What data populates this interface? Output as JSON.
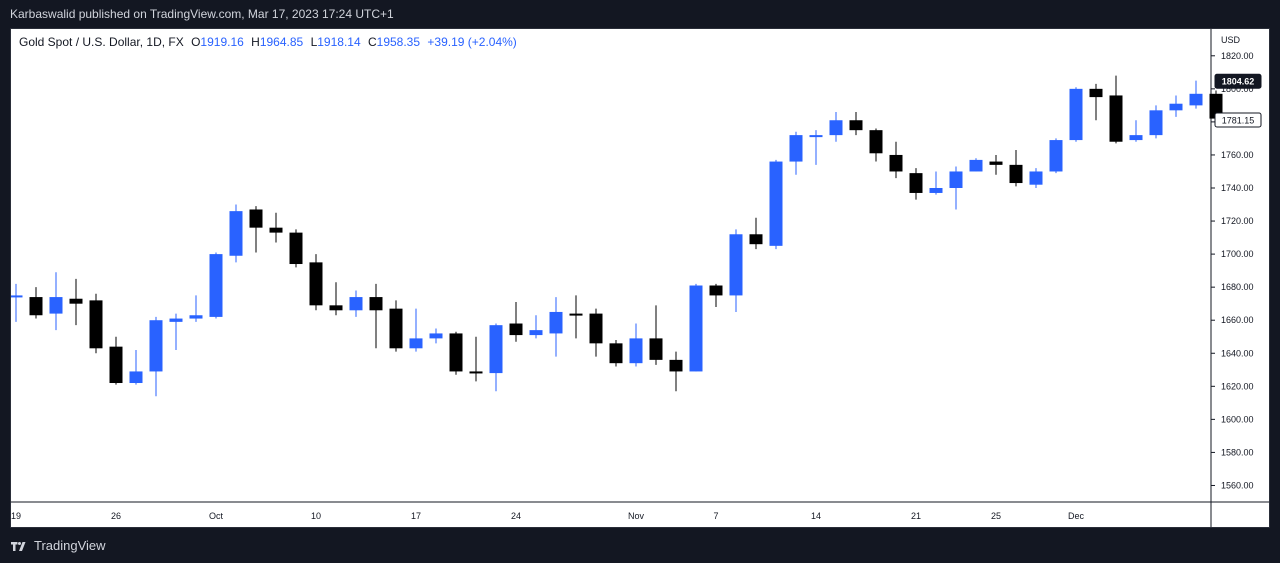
{
  "header": {
    "published": "Karbaswalid published on TradingView.com, Mar 17, 2023 17:24 UTC+1"
  },
  "legend": {
    "symbol": "Gold Spot / U.S. Dollar, 1D, FX",
    "o_label": "O",
    "o_value": "1919.16",
    "h_label": "H",
    "h_value": "1964.85",
    "l_label": "L",
    "l_value": "1918.14",
    "c_label": "C",
    "c_value": "1958.35",
    "change": "+39.19 (+2.04%)"
  },
  "footer": {
    "brand": "TradingView"
  },
  "colors": {
    "up": "#2962ff",
    "down": "#000000",
    "price_tag_bg": "#131722",
    "background": "#ffffff"
  },
  "chart_data": {
    "type": "candlestick",
    "currency_label": "USD",
    "y_ticks": [
      1560,
      1580,
      1600,
      1620,
      1640,
      1660,
      1680,
      1700,
      1720,
      1740,
      1760,
      1780,
      1800,
      1820
    ],
    "y_tick_labels": [
      "1560.00",
      "1580.00",
      "1600.00",
      "1620.00",
      "1640.00",
      "1660.00",
      "1680.00",
      "1700.00",
      "1720.00",
      "1740.00",
      "1760.00",
      "1780.00",
      "1800.00",
      "1820.00"
    ],
    "ylim": [
      1550,
      1835
    ],
    "x_labels": [
      {
        "label": "19",
        "index": 0
      },
      {
        "label": "26",
        "index": 5
      },
      {
        "label": "Oct",
        "index": 10
      },
      {
        "label": "10",
        "index": 15
      },
      {
        "label": "17",
        "index": 20
      },
      {
        "label": "24",
        "index": 25
      },
      {
        "label": "Nov",
        "index": 31
      },
      {
        "label": "7",
        "index": 35
      },
      {
        "label": "14",
        "index": 40
      },
      {
        "label": "21",
        "index": 45
      },
      {
        "label": "25",
        "index": 49
      },
      {
        "label": "Dec",
        "index": 53
      }
    ],
    "price_tags": [
      {
        "label": "1804.62",
        "value": 1804.62,
        "style": "dark"
      },
      {
        "label": "1781.15",
        "value": 1781.15,
        "style": "light"
      }
    ],
    "candles": [
      {
        "o": 1674,
        "h": 1682,
        "l": 1659,
        "c": 1675
      },
      {
        "o": 1674,
        "h": 1680,
        "l": 1661,
        "c": 1663
      },
      {
        "o": 1664,
        "h": 1689,
        "l": 1654,
        "c": 1674
      },
      {
        "o": 1673,
        "h": 1685,
        "l": 1657,
        "c": 1670
      },
      {
        "o": 1672,
        "h": 1676,
        "l": 1640,
        "c": 1643
      },
      {
        "o": 1644,
        "h": 1650,
        "l": 1621,
        "c": 1622
      },
      {
        "o": 1622,
        "h": 1642,
        "l": 1621,
        "c": 1629
      },
      {
        "o": 1629,
        "h": 1662,
        "l": 1614,
        "c": 1660
      },
      {
        "o": 1659,
        "h": 1664,
        "l": 1642,
        "c": 1661
      },
      {
        "o": 1661,
        "h": 1675,
        "l": 1659,
        "c": 1663
      },
      {
        "o": 1662,
        "h": 1701,
        "l": 1661,
        "c": 1700
      },
      {
        "o": 1699,
        "h": 1730,
        "l": 1695,
        "c": 1726
      },
      {
        "o": 1727,
        "h": 1729,
        "l": 1701,
        "c": 1716
      },
      {
        "o": 1716,
        "h": 1725,
        "l": 1707,
        "c": 1713
      },
      {
        "o": 1713,
        "h": 1715,
        "l": 1692,
        "c": 1694
      },
      {
        "o": 1695,
        "h": 1700,
        "l": 1666,
        "c": 1669
      },
      {
        "o": 1669,
        "h": 1683,
        "l": 1663,
        "c": 1666
      },
      {
        "o": 1666,
        "h": 1678,
        "l": 1662,
        "c": 1674
      },
      {
        "o": 1674,
        "h": 1682,
        "l": 1643,
        "c": 1666
      },
      {
        "o": 1667,
        "h": 1672,
        "l": 1641,
        "c": 1643
      },
      {
        "o": 1643,
        "h": 1667,
        "l": 1641,
        "c": 1649
      },
      {
        "o": 1649,
        "h": 1655,
        "l": 1646,
        "c": 1652
      },
      {
        "o": 1652,
        "h": 1653,
        "l": 1627,
        "c": 1629
      },
      {
        "o": 1629,
        "h": 1650,
        "l": 1623,
        "c": 1628
      },
      {
        "o": 1628,
        "h": 1658,
        "l": 1617,
        "c": 1657
      },
      {
        "o": 1658,
        "h": 1671,
        "l": 1647,
        "c": 1651
      },
      {
        "o": 1651,
        "h": 1663,
        "l": 1649,
        "c": 1654
      },
      {
        "o": 1652,
        "h": 1674,
        "l": 1638,
        "c": 1665
      },
      {
        "o": 1664,
        "h": 1675,
        "l": 1649,
        "c": 1663
      },
      {
        "o": 1664,
        "h": 1667,
        "l": 1638,
        "c": 1646
      },
      {
        "o": 1646,
        "h": 1648,
        "l": 1632,
        "c": 1634
      },
      {
        "o": 1634,
        "h": 1658,
        "l": 1632,
        "c": 1649
      },
      {
        "o": 1649,
        "h": 1669,
        "l": 1633,
        "c": 1636
      },
      {
        "o": 1636,
        "h": 1641,
        "l": 1617,
        "c": 1629
      },
      {
        "o": 1629,
        "h": 1682,
        "l": 1629,
        "c": 1681
      },
      {
        "o": 1681,
        "h": 1682,
        "l": 1668,
        "c": 1675
      },
      {
        "o": 1675,
        "h": 1715,
        "l": 1665,
        "c": 1712
      },
      {
        "o": 1712,
        "h": 1722,
        "l": 1703,
        "c": 1706
      },
      {
        "o": 1705,
        "h": 1757,
        "l": 1703,
        "c": 1756
      },
      {
        "o": 1756,
        "h": 1774,
        "l": 1748,
        "c": 1772
      },
      {
        "o": 1771,
        "h": 1775,
        "l": 1754,
        "c": 1772
      },
      {
        "o": 1772,
        "h": 1786,
        "l": 1768,
        "c": 1781
      },
      {
        "o": 1781,
        "h": 1786,
        "l": 1772,
        "c": 1775
      },
      {
        "o": 1775,
        "h": 1776,
        "l": 1756,
        "c": 1761
      },
      {
        "o": 1760,
        "h": 1768,
        "l": 1746,
        "c": 1750
      },
      {
        "o": 1749,
        "h": 1752,
        "l": 1733,
        "c": 1737
      },
      {
        "o": 1737,
        "h": 1750,
        "l": 1736,
        "c": 1740
      },
      {
        "o": 1740,
        "h": 1753,
        "l": 1727,
        "c": 1750
      },
      {
        "o": 1750,
        "h": 1758,
        "l": 1750,
        "c": 1757
      },
      {
        "o": 1756,
        "h": 1760,
        "l": 1748,
        "c": 1754
      },
      {
        "o": 1754,
        "h": 1763,
        "l": 1741,
        "c": 1743
      },
      {
        "o": 1742,
        "h": 1752,
        "l": 1740,
        "c": 1750
      },
      {
        "o": 1750,
        "h": 1770,
        "l": 1749,
        "c": 1769
      },
      {
        "o": 1769,
        "h": 1801,
        "l": 1768,
        "c": 1800
      },
      {
        "o": 1800,
        "h": 1803,
        "l": 1781,
        "c": 1795
      },
      {
        "o": 1796,
        "h": 1808,
        "l": 1767,
        "c": 1768
      },
      {
        "o": 1769,
        "h": 1781,
        "l": 1768,
        "c": 1772
      },
      {
        "o": 1772,
        "h": 1790,
        "l": 1770,
        "c": 1787
      },
      {
        "o": 1787,
        "h": 1796,
        "l": 1783,
        "c": 1791
      },
      {
        "o": 1790,
        "h": 1805,
        "l": 1788,
        "c": 1797
      },
      {
        "o": 1797,
        "h": 1799,
        "l": 1780,
        "c": 1782
      }
    ]
  }
}
